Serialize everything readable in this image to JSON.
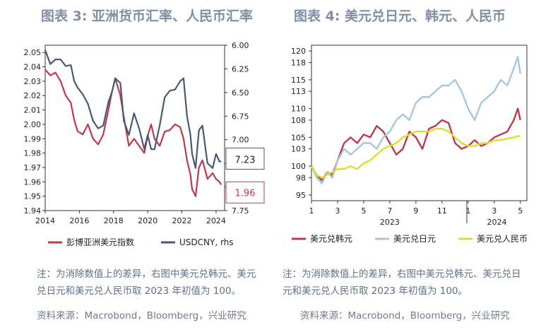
{
  "left": {
    "title": "图表 3: 亚洲货币汇率、人民币汇率",
    "note": "注：为消除数值上的差异，右图中美元兑韩元、美元兑日元和美元兑人民币取 2023 年初值为 100。",
    "source": "资料来源：Macrobond，Bloomberg，兴业研究"
  },
  "right": {
    "title": "图表 4: 美元兑日元、韩元、人民币",
    "note": "注：为消除数值上的差异，右图中美元兑韩元、美元兑日元和美元兑人民币取 2023 年初值为 100。",
    "source": "资料来源：Macrobond，Bloomberg，兴业研究"
  },
  "chart_data": [
    {
      "type": "line",
      "title": "亚洲货币汇率、人民币汇率",
      "x_ticks": [
        "2014",
        "2016",
        "2018",
        "2020",
        "2022",
        "2024"
      ],
      "x_range": [
        2014,
        2024.5
      ],
      "y_left_ticks": [
        "2.05",
        "2.04",
        "2.03",
        "2.02",
        "2.01",
        "2.00",
        "1.99",
        "1.98",
        "1.97",
        "1.96",
        "1.95",
        "1.94"
      ],
      "y_left_range": [
        1.94,
        2.055
      ],
      "y_right_ticks": [
        "6.00",
        "6.25",
        "6.50",
        "6.75",
        "7.00",
        "7.25",
        "7.50",
        "7.75"
      ],
      "y_right_range": [
        6.0,
        7.75
      ],
      "right_axis_inverted": true,
      "series": [
        {
          "name": "彭博亚洲美元指数",
          "axis": "left",
          "color": "#c0394b",
          "x": [
            2014.0,
            2014.3,
            2014.6,
            2014.9,
            2015.2,
            2015.5,
            2015.7,
            2015.9,
            2016.2,
            2016.5,
            2016.8,
            2017.1,
            2017.4,
            2017.7,
            2017.9,
            2018.1,
            2018.4,
            2018.6,
            2018.9,
            2019.2,
            2019.5,
            2019.8,
            2020.0,
            2020.2,
            2020.4,
            2020.7,
            2021.0,
            2021.3,
            2021.6,
            2021.9,
            2022.1,
            2022.3,
            2022.5,
            2022.6,
            2022.8,
            2023.0,
            2023.2,
            2023.5,
            2023.8,
            2024.0,
            2024.2,
            2024.3
          ],
          "y": [
            2.038,
            2.034,
            2.036,
            2.03,
            2.02,
            2.015,
            2.003,
            1.995,
            1.993,
            2.0,
            1.99,
            1.986,
            1.993,
            2.01,
            2.022,
            2.032,
            2.02,
            2.005,
            1.985,
            1.99,
            1.985,
            1.98,
            1.992,
            2.0,
            1.99,
            1.985,
            1.995,
            1.996,
            2.0,
            1.998,
            1.99,
            1.975,
            1.965,
            1.955,
            1.95,
            1.97,
            1.975,
            1.962,
            1.966,
            1.962,
            1.96,
            1.958
          ]
        },
        {
          "name": "USDCNY, rhs",
          "axis": "right",
          "color": "#4a5775",
          "x": [
            2014.0,
            2014.3,
            2014.6,
            2014.9,
            2015.2,
            2015.5,
            2015.7,
            2015.9,
            2016.2,
            2016.5,
            2016.8,
            2017.1,
            2017.4,
            2017.7,
            2017.9,
            2018.1,
            2018.4,
            2018.6,
            2018.9,
            2019.2,
            2019.5,
            2019.8,
            2020.0,
            2020.2,
            2020.4,
            2020.7,
            2021.0,
            2021.3,
            2021.6,
            2021.9,
            2022.1,
            2022.3,
            2022.5,
            2022.6,
            2022.8,
            2023.0,
            2023.2,
            2023.5,
            2023.8,
            2024.0,
            2024.2,
            2024.3
          ],
          "y": [
            6.05,
            6.2,
            6.15,
            6.15,
            6.22,
            6.21,
            6.38,
            6.45,
            6.52,
            6.62,
            6.8,
            6.88,
            6.85,
            6.6,
            6.5,
            6.35,
            6.4,
            6.8,
            6.95,
            6.72,
            6.88,
            7.1,
            6.95,
            7.1,
            7.1,
            6.85,
            6.55,
            6.48,
            6.47,
            6.38,
            6.35,
            6.75,
            6.95,
            7.15,
            7.3,
            6.9,
            6.85,
            7.25,
            7.3,
            7.15,
            7.23,
            7.23
          ]
        }
      ],
      "labels": [
        {
          "series": "USDCNY, rhs",
          "value": "7.23"
        },
        {
          "series": "彭博亚洲美元指数",
          "value": "1.96"
        }
      ],
      "legend": [
        "彭博亚洲美元指数",
        "USDCNY, rhs"
      ],
      "legend_position": "bottom"
    },
    {
      "type": "line",
      "title": "美元兑日元、韩元、人民币",
      "x_ticks": [
        "1",
        "3",
        "5",
        "7",
        "9",
        "11",
        "1",
        "3",
        "5"
      ],
      "x_year_labels": [
        "2023",
        "2024"
      ],
      "x_range": [
        0,
        16.5
      ],
      "y_ticks": [
        "120",
        "118",
        "115",
        "113",
        "110",
        "108",
        "105",
        "103",
        "100",
        "98",
        "95"
      ],
      "y_range": [
        94,
        121
      ],
      "series": [
        {
          "name": "美元兑韩元",
          "color": "#c0394b",
          "x": [
            0,
            0.4,
            0.8,
            1.2,
            1.6,
            2.0,
            2.5,
            3.0,
            3.5,
            4.0,
            4.5,
            5.0,
            5.5,
            6.0,
            6.5,
            7.0,
            7.5,
            8.0,
            8.5,
            9.0,
            9.5,
            10.0,
            10.5,
            11.0,
            11.5,
            12.0,
            12.5,
            13.0,
            13.5,
            14.0,
            14.5,
            15.0,
            15.5,
            15.8,
            16.0
          ],
          "y": [
            100,
            98.5,
            97.5,
            99,
            98.5,
            101,
            104,
            105,
            104,
            105.5,
            105,
            107,
            106,
            104,
            102,
            103,
            106,
            105,
            103,
            106.5,
            107,
            108,
            107.5,
            104,
            103,
            103.5,
            104.5,
            103.5,
            104,
            105,
            105.5,
            106,
            108,
            110,
            108
          ]
        },
        {
          "name": "美元兑日元",
          "color": "#a6c6e2",
          "x": [
            0,
            0.4,
            0.8,
            1.2,
            1.6,
            2.0,
            2.5,
            3.0,
            3.5,
            4.0,
            4.5,
            5.0,
            5.5,
            6.0,
            6.5,
            7.0,
            7.5,
            8.0,
            8.5,
            9.0,
            9.5,
            10.0,
            10.5,
            11.0,
            11.5,
            12.0,
            12.5,
            13.0,
            13.5,
            14.0,
            14.5,
            15.0,
            15.5,
            15.8,
            16.0
          ],
          "y": [
            100,
            98,
            97,
            99,
            98,
            101,
            103,
            102,
            103,
            104,
            104,
            103,
            105,
            106,
            108,
            109,
            108,
            111,
            112,
            112,
            113,
            114,
            114,
            115,
            113,
            110,
            108,
            111,
            112,
            113,
            115,
            114,
            117,
            119,
            116
          ]
        },
        {
          "name": "美元兑人民币",
          "color": "#dede2a",
          "x": [
            0,
            0.4,
            0.8,
            1.2,
            1.6,
            2.0,
            2.5,
            3.0,
            3.5,
            4.0,
            4.5,
            5.0,
            5.5,
            6.0,
            6.5,
            7.0,
            7.5,
            8.0,
            8.5,
            9.0,
            9.5,
            10.0,
            10.5,
            11.0,
            11.5,
            12.0,
            12.5,
            13.0,
            13.5,
            14.0,
            14.5,
            15.0,
            15.5,
            15.8,
            16.0
          ],
          "y": [
            100,
            98.5,
            98,
            98.5,
            99,
            99.5,
            99.5,
            100,
            99.5,
            100.5,
            101,
            102,
            103,
            103.5,
            104,
            105,
            105.5,
            106,
            106,
            106,
            106.5,
            106.5,
            106,
            105,
            104,
            103.5,
            103.5,
            104,
            104,
            104.5,
            104.5,
            104.8,
            105,
            105.2,
            105.2
          ]
        }
      ],
      "legend": [
        "美元兑韩元",
        "美元兑日元",
        "美元兑人民币"
      ],
      "legend_position": "bottom"
    }
  ]
}
